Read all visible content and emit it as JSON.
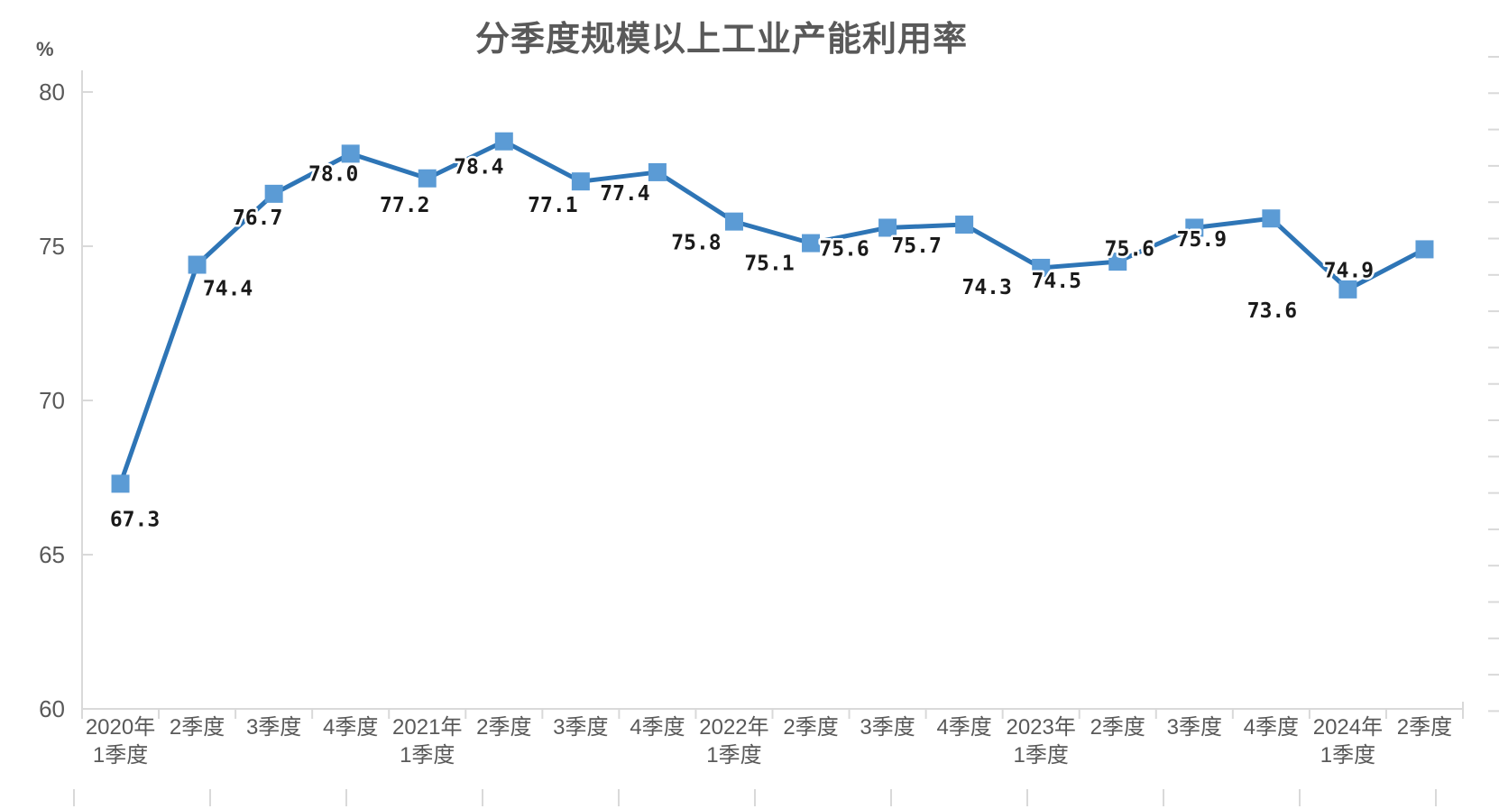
{
  "chart_data": {
    "type": "line",
    "title": "分季度规模以上工业产能利用率",
    "y_axis": {
      "unit": "%",
      "ticks": [
        80,
        75,
        70,
        65,
        60
      ],
      "min": 60,
      "max": 80
    },
    "x_categories": [
      [
        "2020年",
        "1季度"
      ],
      [
        "2季度"
      ],
      [
        "3季度"
      ],
      [
        "4季度"
      ],
      [
        "2021年",
        "1季度"
      ],
      [
        "2季度"
      ],
      [
        "3季度"
      ],
      [
        "4季度"
      ],
      [
        "2022年",
        "1季度"
      ],
      [
        "2季度"
      ],
      [
        "3季度"
      ],
      [
        "4季度"
      ],
      [
        "2023年",
        "1季度"
      ],
      [
        "2季度"
      ],
      [
        "3季度"
      ],
      [
        "4季度"
      ],
      [
        "2024年",
        "1季度"
      ],
      [
        "2季度"
      ]
    ],
    "series": [
      {
        "values": [
          67.3,
          74.4,
          76.7,
          78.0,
          77.2,
          78.4,
          77.1,
          77.4,
          75.8,
          75.1,
          75.6,
          75.7,
          74.3,
          74.5,
          75.6,
          75.9,
          73.6,
          74.9
        ]
      }
    ],
    "value_format": "one-decimal",
    "grid": "off",
    "legend": "none",
    "ylim": [
      60,
      80
    ],
    "colors": {
      "line": "#2E75B6",
      "marker": "#5B9BD5",
      "axis": "#D9D9D9",
      "axis_text": "#595959",
      "title_text": "#595959",
      "data_label": "#1A1A1A",
      "background": "#FFFFFF"
    }
  }
}
